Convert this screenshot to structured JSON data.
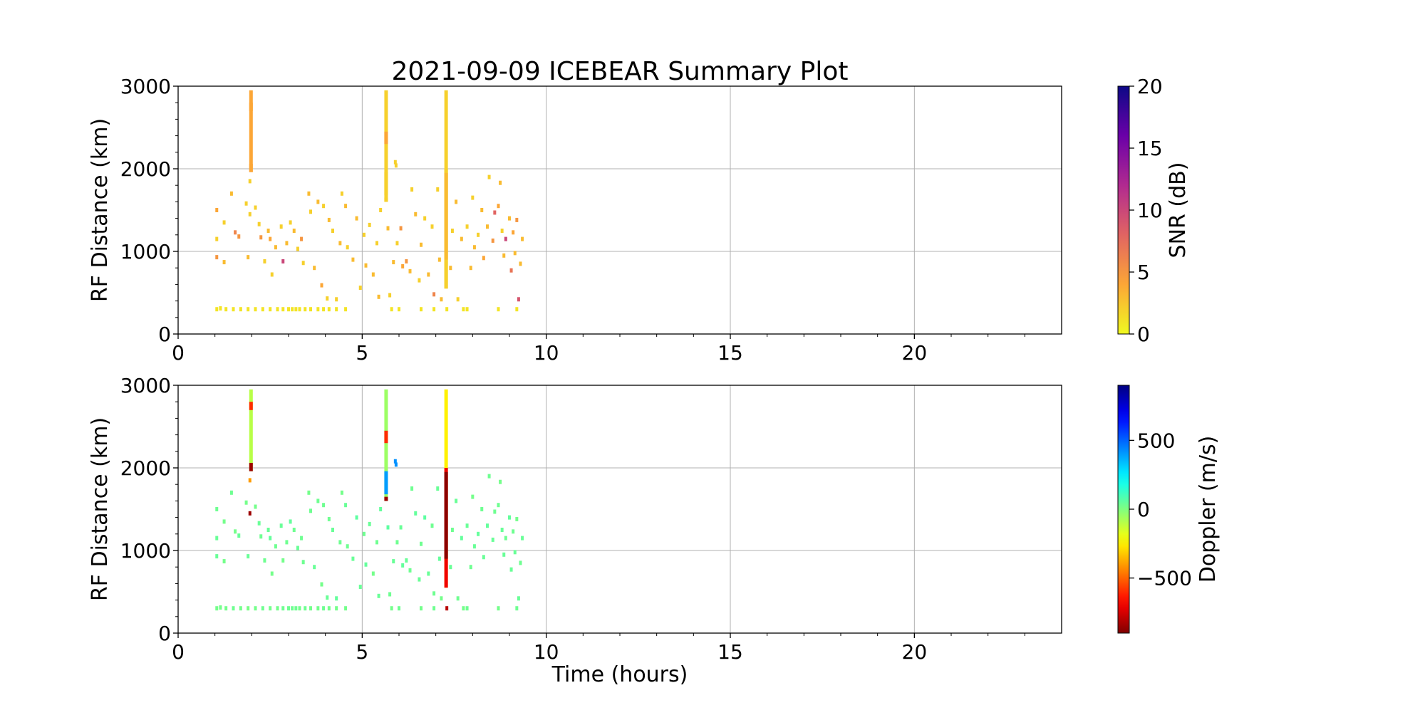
{
  "chart_data": {
    "title": "2021-09-09 ICEBEAR Summary Plot",
    "xlabel": "Time (hours)",
    "xlim": [
      0,
      24
    ],
    "xticks": [
      "0",
      "5",
      "10",
      "15",
      "20"
    ],
    "xtick_values": [
      0,
      5,
      10,
      15,
      20
    ],
    "grid": true,
    "panels": [
      {
        "type": "scatter",
        "ylabel": "RF Distance (km)",
        "ylim": [
          0,
          3000
        ],
        "yticks": [
          "0",
          "1000",
          "2000",
          "3000"
        ],
        "ytick_values": [
          0,
          1000,
          2000,
          3000
        ],
        "color_by": "snr",
        "colorbar": {
          "label": "SNR (dB)",
          "colormap": "plasma_r",
          "range": [
            0,
            20
          ],
          "ticks": [
            "0",
            "5",
            "10",
            "15",
            "20"
          ],
          "tick_values": [
            0,
            5,
            10,
            15,
            20
          ]
        }
      },
      {
        "type": "scatter",
        "ylabel": "RF Distance (km)",
        "ylim": [
          0,
          3000
        ],
        "yticks": [
          "0",
          "1000",
          "2000",
          "3000"
        ],
        "ytick_values": [
          0,
          1000,
          2000,
          3000
        ],
        "color_by": "doppler",
        "colorbar": {
          "label": "Doppler (m/s)",
          "colormap": "jet",
          "range": [
            -900,
            900
          ],
          "ticks": [
            "−500",
            "0",
            "500"
          ],
          "tick_values": [
            -500,
            0,
            500
          ]
        }
      }
    ],
    "point_fields": [
      "time_hours",
      "rf_distance_km",
      "snr_db",
      "doppler_ms"
    ],
    "points": [
      [
        1.05,
        300,
        1,
        20
      ],
      [
        1.15,
        310,
        1,
        20
      ],
      [
        1.3,
        300,
        1,
        20
      ],
      [
        1.5,
        300,
        1,
        30
      ],
      [
        1.7,
        300,
        1,
        20
      ],
      [
        1.9,
        300,
        1,
        10
      ],
      [
        2.1,
        300,
        1,
        20
      ],
      [
        2.3,
        300,
        1,
        30
      ],
      [
        2.5,
        300,
        1,
        20
      ],
      [
        2.7,
        300,
        1,
        20
      ],
      [
        2.85,
        300,
        1,
        30
      ],
      [
        3.0,
        300,
        1,
        30
      ],
      [
        3.1,
        300,
        1,
        30
      ],
      [
        3.2,
        300,
        1,
        30
      ],
      [
        3.3,
        300,
        1,
        20
      ],
      [
        3.45,
        300,
        1,
        30
      ],
      [
        3.6,
        300,
        1,
        20
      ],
      [
        3.8,
        300,
        1,
        20
      ],
      [
        3.95,
        300,
        1,
        30
      ],
      [
        4.1,
        300,
        1,
        20
      ],
      [
        4.3,
        300,
        1,
        20
      ],
      [
        4.55,
        300,
        1,
        20
      ],
      [
        1.05,
        1500,
        4,
        30
      ],
      [
        1.05,
        930,
        5,
        40
      ],
      [
        1.05,
        1150,
        2,
        40
      ],
      [
        1.25,
        870,
        3,
        20
      ],
      [
        1.25,
        1350,
        2,
        20
      ],
      [
        1.45,
        1700,
        3,
        30
      ],
      [
        1.55,
        1230,
        6,
        20
      ],
      [
        1.65,
        1180,
        5,
        40
      ],
      [
        1.85,
        1580,
        2,
        20
      ],
      [
        1.9,
        930,
        3,
        40
      ],
      [
        2.1,
        1530,
        2,
        20
      ],
      [
        2.2,
        1330,
        2,
        40
      ],
      [
        2.25,
        1170,
        5,
        30
      ],
      [
        2.35,
        880,
        2,
        30
      ],
      [
        2.45,
        1250,
        3,
        40
      ],
      [
        2.5,
        1150,
        4,
        50
      ],
      [
        2.55,
        720,
        2,
        20
      ],
      [
        2.65,
        1050,
        3,
        30
      ],
      [
        2.8,
        1300,
        2,
        40
      ],
      [
        2.85,
        880,
        10,
        20
      ],
      [
        2.95,
        1100,
        3,
        30
      ],
      [
        3.05,
        1350,
        2,
        50
      ],
      [
        3.15,
        1250,
        3,
        30
      ],
      [
        3.25,
        1030,
        2,
        40
      ],
      [
        3.35,
        1150,
        5,
        30
      ],
      [
        3.4,
        860,
        2,
        30
      ],
      [
        3.55,
        1700,
        3,
        20
      ],
      [
        3.6,
        1480,
        2,
        30
      ],
      [
        3.7,
        800,
        3,
        40
      ],
      [
        3.8,
        1600,
        3,
        30
      ],
      [
        3.9,
        590,
        4,
        20
      ],
      [
        3.95,
        1550,
        2,
        30
      ],
      [
        4.05,
        430,
        2,
        40
      ],
      [
        4.1,
        1380,
        3,
        30
      ],
      [
        4.2,
        1250,
        2,
        40
      ],
      [
        4.3,
        420,
        2,
        50
      ],
      [
        4.4,
        1100,
        3,
        30
      ],
      [
        4.45,
        1700,
        2,
        20
      ],
      [
        4.55,
        1550,
        3,
        40
      ],
      [
        4.6,
        1050,
        2,
        30
      ],
      [
        4.75,
        900,
        3,
        40
      ],
      [
        4.85,
        1400,
        3,
        60
      ],
      [
        4.95,
        560,
        2,
        40
      ],
      [
        5.05,
        1200,
        2,
        30
      ],
      [
        5.1,
        830,
        3,
        50
      ],
      [
        5.2,
        1320,
        2,
        40
      ],
      [
        5.3,
        720,
        3,
        20
      ],
      [
        5.4,
        1100,
        2,
        30
      ],
      [
        5.45,
        450,
        3,
        40
      ],
      [
        5.5,
        1500,
        2,
        50
      ],
      [
        5.7,
        1280,
        3,
        60
      ],
      [
        5.75,
        470,
        2,
        30
      ],
      [
        5.85,
        870,
        3,
        40
      ],
      [
        5.95,
        1100,
        2,
        30
      ],
      [
        6.05,
        1280,
        5,
        40
      ],
      [
        6.1,
        820,
        4,
        50
      ],
      [
        6.2,
        880,
        5,
        40
      ],
      [
        6.3,
        760,
        3,
        30
      ],
      [
        6.35,
        1750,
        2,
        30
      ],
      [
        6.45,
        1450,
        3,
        50
      ],
      [
        6.55,
        650,
        2,
        40
      ],
      [
        6.6,
        1080,
        3,
        30
      ],
      [
        6.7,
        1400,
        2,
        60
      ],
      [
        6.8,
        720,
        3,
        40
      ],
      [
        6.9,
        1300,
        2,
        30
      ],
      [
        6.95,
        480,
        6,
        30
      ],
      [
        7.05,
        1750,
        2,
        40
      ],
      [
        7.1,
        900,
        3,
        50
      ],
      [
        7.15,
        420,
        3,
        20
      ],
      [
        7.4,
        800,
        3,
        40
      ],
      [
        7.45,
        1250,
        2,
        30
      ],
      [
        7.55,
        1600,
        3,
        40
      ],
      [
        7.6,
        420,
        2,
        30
      ],
      [
        7.7,
        1150,
        3,
        50
      ],
      [
        7.85,
        1300,
        2,
        40
      ],
      [
        7.95,
        800,
        3,
        30
      ],
      [
        8.0,
        1650,
        2,
        20
      ],
      [
        8.05,
        1050,
        3,
        40
      ],
      [
        8.15,
        1200,
        2,
        50
      ],
      [
        8.25,
        1500,
        3,
        30
      ],
      [
        8.3,
        920,
        4,
        40
      ],
      [
        8.4,
        1300,
        3,
        50
      ],
      [
        8.45,
        1900,
        2,
        30
      ],
      [
        8.55,
        1130,
        5,
        40
      ],
      [
        8.6,
        1470,
        8,
        30
      ],
      [
        8.7,
        1550,
        4,
        30
      ],
      [
        8.75,
        1830,
        3,
        20
      ],
      [
        8.8,
        1250,
        2,
        40
      ],
      [
        8.85,
        950,
        3,
        40
      ],
      [
        8.9,
        1150,
        10,
        30
      ],
      [
        9.0,
        1400,
        3,
        50
      ],
      [
        9.05,
        770,
        7,
        40
      ],
      [
        9.1,
        1230,
        4,
        30
      ],
      [
        9.15,
        980,
        3,
        40
      ],
      [
        9.2,
        1380,
        5,
        20
      ],
      [
        9.25,
        420,
        9,
        40
      ],
      [
        9.3,
        850,
        3,
        30
      ],
      [
        9.35,
        1150,
        3,
        40
      ],
      [
        5.8,
        300,
        1,
        20
      ],
      [
        6.0,
        300,
        1,
        30
      ],
      [
        6.6,
        300,
        1,
        20
      ],
      [
        6.95,
        300,
        1,
        30
      ],
      [
        7.3,
        300,
        1,
        -800
      ],
      [
        7.75,
        300,
        1,
        20
      ],
      [
        7.85,
        300,
        1,
        30
      ],
      [
        8.7,
        300,
        1,
        20
      ],
      [
        9.2,
        300,
        1,
        30
      ],
      [
        1.95,
        1850,
        2,
        -400
      ],
      [
        1.95,
        1450,
        2,
        -850
      ],
      [
        5.9,
        2080,
        2,
        420
      ],
      [
        5.92,
        2040,
        2,
        420
      ]
    ],
    "stripe_fields": [
      "time_hours",
      "range_start_km",
      "range_end_km",
      "snr_db",
      "doppler_ms"
    ],
    "stripes": [
      [
        1.98,
        1960,
        2950,
        4,
        -100
      ],
      [
        1.98,
        2700,
        2800,
        4,
        -600
      ],
      [
        1.98,
        1960,
        2060,
        4,
        -850
      ],
      [
        5.65,
        1600,
        2950,
        2,
        -50
      ],
      [
        5.65,
        2300,
        2450,
        4,
        -600
      ],
      [
        5.65,
        1680,
        1960,
        2,
        400
      ],
      [
        5.65,
        1600,
        1650,
        2,
        -850
      ],
      [
        7.28,
        550,
        2950,
        2,
        -250
      ],
      [
        7.28,
        550,
        2000,
        2,
        -700
      ],
      [
        7.28,
        900,
        1950,
        3,
        -880
      ]
    ]
  }
}
